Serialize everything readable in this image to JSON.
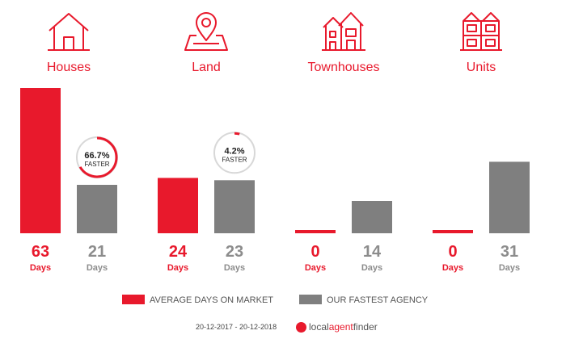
{
  "colors": {
    "accent": "#e8192c",
    "agency": "#7f7f7f",
    "agency_text": "#8c8c8c",
    "badge_ring": "#d8d8d8"
  },
  "chart_data": {
    "type": "bar",
    "categories": [
      "Houses",
      "Land",
      "Townhouses",
      "Units"
    ],
    "category_icons": [
      "house-icon",
      "land-pin-icon",
      "townhouses-icon",
      "units-icon"
    ],
    "series": [
      {
        "name": "AVERAGE DAYS ON MARKET",
        "values": [
          63,
          24,
          0,
          0
        ]
      },
      {
        "name": "OUR FASTEST AGENCY",
        "values": [
          21,
          23,
          14,
          31
        ]
      }
    ],
    "unit_label": "Days",
    "badges": [
      {
        "category_index": 0,
        "percent_text": "66.7%",
        "fraction": 0.667,
        "label": "FASTER"
      },
      {
        "category_index": 1,
        "percent_text": "4.2%",
        "fraction": 0.042,
        "label": "FASTER"
      }
    ],
    "ylim": [
      0,
      63
    ],
    "grid": false,
    "legend_position": "bottom"
  },
  "footer": {
    "date_range": "20-12-2017 - 20-12-2018",
    "brand_local": "local",
    "brand_agent": "agent",
    "brand_finder": "finder"
  }
}
